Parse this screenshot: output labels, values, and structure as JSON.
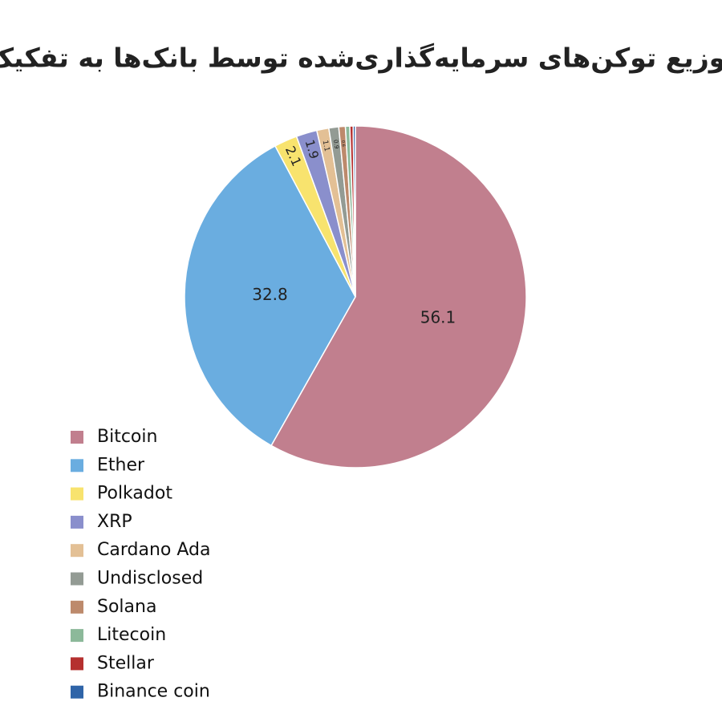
{
  "chart_data": {
    "type": "pie",
    "title": "توزیع توکن‌های سرمایه‌گذاری‌شده توسط بانک‌ها به تفکیک",
    "categories": [
      "Bitcoin",
      "Ether",
      "Polkadot",
      "XRP",
      "Cardano Ada",
      "Undisclosed",
      "Solana",
      "Litecoin",
      "Stellar",
      "Binance coin"
    ],
    "values": [
      56.1,
      32.8,
      2.1,
      1.9,
      1.1,
      0.9,
      0.6,
      0.4,
      0.3,
      0.2
    ],
    "colors": [
      "#c17f8e",
      "#6aade0",
      "#f8e36e",
      "#8a8fcc",
      "#e3c095",
      "#939b94",
      "#bd8a6c",
      "#8cb99a",
      "#b5302f",
      "#2f64a8"
    ],
    "legend": "bottom-left"
  }
}
